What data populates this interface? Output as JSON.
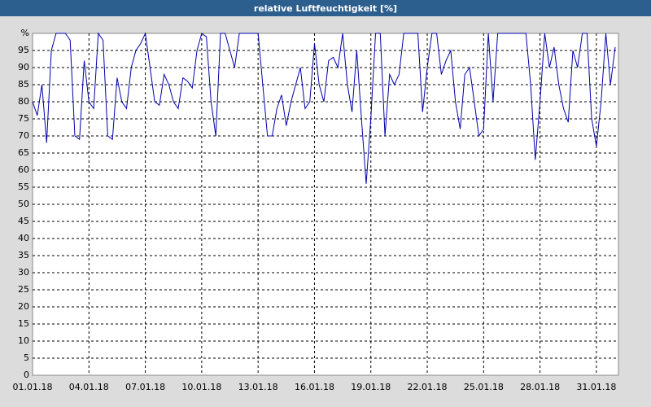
{
  "chart_data": {
    "type": "line",
    "title": "relative Luftfeuchtigkeit [%]",
    "categories": [
      "01.01.18",
      null,
      null,
      null,
      null,
      null,
      null,
      null,
      null,
      null,
      null,
      null,
      "04.01.18",
      null,
      null,
      null,
      null,
      null,
      null,
      null,
      null,
      null,
      null,
      null,
      "07.01.18",
      null,
      null,
      null,
      null,
      null,
      null,
      null,
      null,
      null,
      null,
      null,
      "10.01.18",
      null,
      null,
      null,
      null,
      null,
      null,
      null,
      null,
      null,
      null,
      null,
      "13.01.18",
      null,
      null,
      null,
      null,
      null,
      null,
      null,
      null,
      null,
      null,
      null,
      "16.01.18",
      null,
      null,
      null,
      null,
      null,
      null,
      null,
      null,
      null,
      null,
      null,
      "19.01.18",
      null,
      null,
      null,
      null,
      null,
      null,
      null,
      null,
      null,
      null,
      null,
      "22.01.18",
      null,
      null,
      null,
      null,
      null,
      null,
      null,
      null,
      null,
      null,
      null,
      "25.01.18",
      null,
      null,
      null,
      null,
      null,
      null,
      null,
      null,
      null,
      null,
      null,
      "28.01.18",
      null,
      null,
      null,
      null,
      null,
      null,
      null,
      null,
      null,
      null,
      null,
      "31.01.18",
      null,
      null,
      null,
      null
    ],
    "series": [
      {
        "color": "#0000aa",
        "values": [
          80,
          76,
          85,
          68,
          95,
          100,
          100,
          100,
          98,
          70,
          69,
          92,
          80,
          78,
          100,
          98,
          70,
          69,
          87,
          80,
          78,
          90,
          95,
          97,
          100,
          90,
          80,
          79,
          88,
          85,
          80,
          78,
          87,
          86,
          84,
          95,
          100,
          99,
          80,
          70,
          100,
          100,
          95,
          90,
          100,
          100,
          100,
          100,
          100,
          85,
          70,
          70,
          78,
          82,
          73,
          80,
          85,
          90,
          78,
          80,
          97,
          85,
          80,
          92,
          93,
          90,
          100,
          85,
          77,
          95,
          75,
          56,
          75,
          100,
          100,
          70,
          88,
          85,
          88,
          100,
          100,
          100,
          100,
          77,
          90,
          100,
          100,
          88,
          92,
          95,
          80,
          72,
          88,
          90,
          80,
          70,
          72,
          100,
          80,
          100,
          100,
          100,
          100,
          100,
          100,
          100,
          85,
          63,
          80,
          100,
          90,
          96,
          85,
          78,
          74,
          95,
          90,
          100,
          100,
          75,
          67,
          80,
          100,
          85,
          96
        ]
      }
    ],
    "ylim": [
      0,
      100
    ],
    "yticks": [
      0,
      5,
      10,
      15,
      20,
      25,
      30,
      35,
      40,
      45,
      50,
      55,
      60,
      65,
      70,
      75,
      80,
      85,
      90,
      95,
      {
        "value": 100,
        "label": "%"
      }
    ],
    "grid": true
  }
}
